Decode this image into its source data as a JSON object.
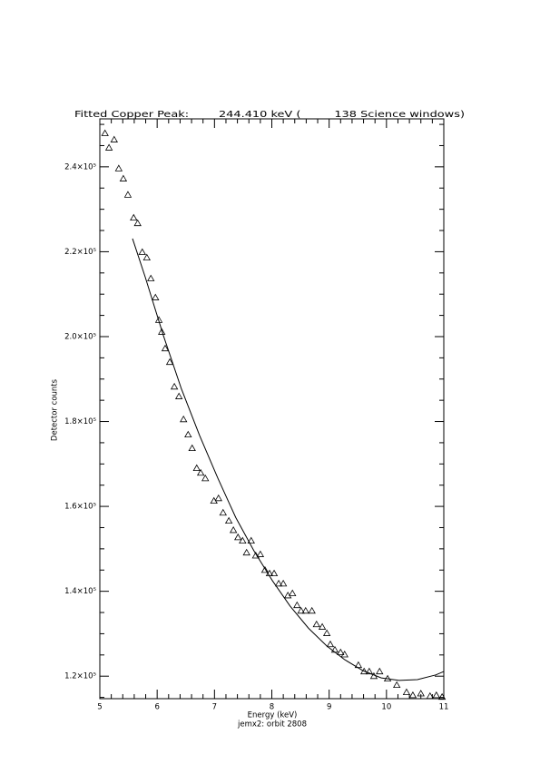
{
  "chart_data": {
    "type": "scatter",
    "title": "Fitted Copper Peak:        244.410 keV (         138 Science windows)",
    "x_label": "Energy (keV)",
    "subtitle": "jemx2: orbit 2808",
    "y_label": "Detector counts",
    "xlim": [
      5,
      11
    ],
    "ylim": [
      114700,
      251300
    ],
    "xticks": [
      5,
      6,
      7,
      8,
      9,
      10,
      11
    ],
    "yticks": [
      {
        "value": 120000,
        "label": "1.2×10⁵"
      },
      {
        "value": 140000,
        "label": "1.4×10⁵"
      },
      {
        "value": 160000,
        "label": "1.6×10⁵"
      },
      {
        "value": 180000,
        "label": "1.8×10⁵"
      },
      {
        "value": 200000,
        "label": "2.0×10⁵"
      },
      {
        "value": 220000,
        "label": "2.2×10⁵"
      },
      {
        "value": 240000,
        "label": "2.4×10⁵"
      }
    ],
    "series": [
      {
        "style": "triangle",
        "color": "#000000",
        "x": [
          5.09,
          5.16,
          5.25,
          5.33,
          5.41,
          5.49,
          5.59,
          5.66,
          5.74,
          5.82,
          5.89,
          5.97,
          6.03,
          6.08,
          6.14,
          6.22,
          6.3,
          6.38,
          6.46,
          6.54,
          6.61,
          6.69,
          6.76,
          6.84,
          6.99,
          7.07,
          7.15,
          7.25,
          7.33,
          7.41,
          7.49,
          7.56,
          7.64,
          7.72,
          7.8,
          7.88,
          7.96,
          8.04,
          8.12,
          8.2,
          8.28,
          8.36,
          8.44,
          8.51,
          8.59,
          8.7,
          8.78,
          8.88,
          8.96,
          9.02,
          9.1,
          9.2,
          9.27,
          9.51,
          9.61,
          9.7,
          9.78,
          9.88,
          10.02,
          10.18,
          10.35,
          10.46,
          10.6,
          10.76,
          10.87,
          10.97
        ],
        "values": [
          247900,
          244500,
          246400,
          239600,
          237200,
          233400,
          228000,
          226700,
          219900,
          218600,
          213700,
          209200,
          203900,
          201100,
          197200,
          194000,
          188200,
          185900,
          180500,
          176900,
          173700,
          169000,
          167900,
          166600,
          161300,
          161900,
          158500,
          156600,
          154400,
          152700,
          151900,
          149100,
          151900,
          148400,
          148700,
          145000,
          144200,
          144200,
          141800,
          141800,
          139000,
          139500,
          136700,
          135400,
          135400,
          135400,
          132200,
          131600,
          130100,
          127500,
          126200,
          125600,
          125100,
          122600,
          121100,
          121100,
          120000,
          121100,
          119400,
          117900,
          116200,
          115500,
          115900,
          115300,
          115500,
          115100
        ]
      },
      {
        "style": "line",
        "color": "#000000",
        "x": [
          5.57,
          5.79,
          6.11,
          6.42,
          6.74,
          7.06,
          7.37,
          7.69,
          8.01,
          8.32,
          8.64,
          8.96,
          9.27,
          9.59,
          9.91,
          10.22,
          10.54,
          10.86,
          11.0
        ],
        "values": [
          223100,
          214100,
          200200,
          187800,
          176700,
          166600,
          157400,
          149500,
          142500,
          136500,
          131300,
          127100,
          123900,
          121300,
          119600,
          119000,
          119200,
          120300,
          121100
        ]
      }
    ]
  }
}
